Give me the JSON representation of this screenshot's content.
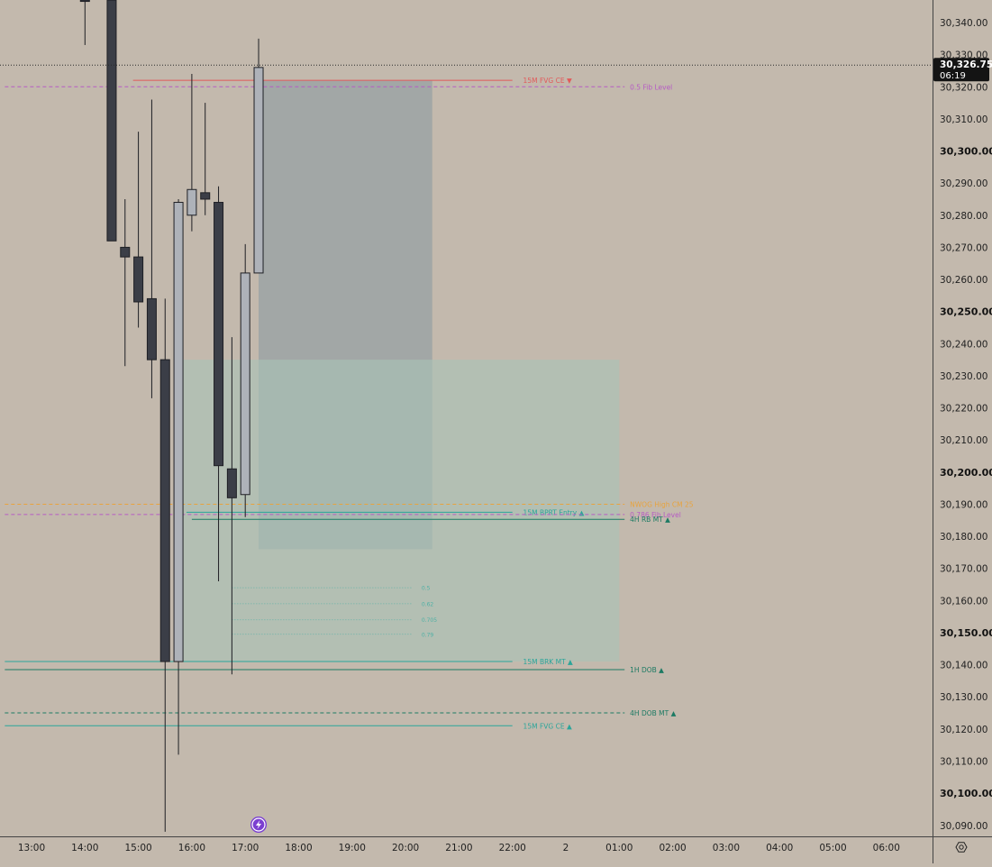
{
  "chart_data": {
    "type": "candlestick",
    "yaxis": {
      "ticks": [
        {
          "v": 30340,
          "label": "30,340.00"
        },
        {
          "v": 30330,
          "label": "30,330.00"
        },
        {
          "v": 30320,
          "label": "30,320.00"
        },
        {
          "v": 30310,
          "label": "30,310.00"
        },
        {
          "v": 30300,
          "label": "30,300.00",
          "bold": true
        },
        {
          "v": 30290,
          "label": "30,290.00"
        },
        {
          "v": 30280,
          "label": "30,280.00"
        },
        {
          "v": 30270,
          "label": "30,270.00"
        },
        {
          "v": 30260,
          "label": "30,260.00"
        },
        {
          "v": 30250,
          "label": "30,250.00",
          "bold": true
        },
        {
          "v": 30240,
          "label": "30,240.00"
        },
        {
          "v": 30230,
          "label": "30,230.00"
        },
        {
          "v": 30220,
          "label": "30,220.00"
        },
        {
          "v": 30210,
          "label": "30,210.00"
        },
        {
          "v": 30200,
          "label": "30,200.00",
          "bold": true
        },
        {
          "v": 30190,
          "label": "30,190.00"
        },
        {
          "v": 30180,
          "label": "30,180.00"
        },
        {
          "v": 30170,
          "label": "30,170.00"
        },
        {
          "v": 30160,
          "label": "30,160.00"
        },
        {
          "v": 30150,
          "label": "30,150.00",
          "bold": true
        },
        {
          "v": 30140,
          "label": "30,140.00"
        },
        {
          "v": 30130,
          "label": "30,130.00"
        },
        {
          "v": 30120,
          "label": "30,120.00"
        },
        {
          "v": 30110,
          "label": "30,110.00"
        },
        {
          "v": 30100,
          "label": "30,100.00",
          "bold": true
        },
        {
          "v": 30090,
          "label": "30,090.00"
        }
      ],
      "ylim": [
        30087,
        30347
      ]
    },
    "xaxis": {
      "ticks": [
        "13:00",
        "14:00",
        "15:00",
        "16:00",
        "17:00",
        "18:00",
        "19:00",
        "20:00",
        "21:00",
        "22:00",
        "2",
        "01:00",
        "02:00",
        "03:00",
        "04:00",
        "05:00",
        "06:00"
      ],
      "hour_span": [
        12.5,
        30.5
      ]
    },
    "candles": [
      {
        "t": 14.0,
        "o": 30347,
        "h": 30347,
        "l": 30333,
        "c": 30347,
        "dir": "down"
      },
      {
        "t": 14.5,
        "o": 30347,
        "h": 30347,
        "l": 30272,
        "c": 30272,
        "dir": "down"
      },
      {
        "t": 14.75,
        "o": 30270,
        "h": 30285,
        "l": 30233,
        "c": 30267,
        "dir": "down"
      },
      {
        "t": 15.0,
        "o": 30267,
        "h": 30306,
        "l": 30245,
        "c": 30253,
        "dir": "down"
      },
      {
        "t": 15.25,
        "o": 30254,
        "h": 30316,
        "l": 30223,
        "c": 30235,
        "dir": "down"
      },
      {
        "t": 15.5,
        "o": 30235,
        "h": 30254,
        "l": 30088,
        "c": 30141,
        "dir": "down"
      },
      {
        "t": 15.75,
        "o": 30141,
        "h": 30285,
        "l": 30112,
        "c": 30284,
        "dir": "up"
      },
      {
        "t": 16.0,
        "o": 30280,
        "h": 30324,
        "l": 30275,
        "c": 30288,
        "dir": "up"
      },
      {
        "t": 16.25,
        "o": 30287,
        "h": 30315,
        "l": 30280,
        "c": 30285,
        "dir": "down"
      },
      {
        "t": 16.5,
        "o": 30284,
        "h": 30289,
        "l": 30166,
        "c": 30202,
        "dir": "down"
      },
      {
        "t": 16.75,
        "o": 30201,
        "h": 30242,
        "l": 30137,
        "c": 30192,
        "dir": "down"
      },
      {
        "t": 17.0,
        "o": 30193,
        "h": 30271,
        "l": 30186,
        "c": 30262,
        "dir": "up"
      },
      {
        "t": 17.25,
        "o": 30262,
        "h": 30335,
        "l": 30262,
        "c": 30326,
        "dir": "up"
      }
    ],
    "zones": [
      {
        "name": "short-zone",
        "t0": 17.25,
        "t1": 20.5,
        "y0": 30176,
        "y1": 30322,
        "color": "#8c9ba2",
        "opacity": 0.6
      },
      {
        "name": "long-zone",
        "t0": 15.75,
        "t1": 24.0,
        "y0": 30141,
        "y1": 30235,
        "color": "#a9c3b7",
        "opacity": 0.6
      }
    ],
    "levels": [
      {
        "name": "fvg-ce-15m-top",
        "t0": 14.9,
        "t1": 22.0,
        "y": 30322,
        "color": "#e25a5a",
        "dash": false,
        "label": "15M FVG CE ▼",
        "lx": 22.2
      },
      {
        "name": "fib-05",
        "t0": 12.5,
        "t1": 24.1,
        "y": 30320,
        "color": "#b65cc4",
        "dash": true,
        "label": "0.5 Fib Level",
        "lx": 24.2
      },
      {
        "name": "nwog-high",
        "t0": 12.5,
        "t1": 24.1,
        "y": 30190,
        "color": "#e8a33d",
        "dash": true,
        "label": "NWOG High CM 25",
        "lx": 24.2
      },
      {
        "name": "15m-bprt-entry",
        "t0": 15.9,
        "t1": 22.0,
        "y": 30187.5,
        "color": "#2ba59a",
        "dash": false,
        "label": "15M BPRT Entry ▲",
        "lx": 22.2
      },
      {
        "name": "fib-0786",
        "t0": 12.5,
        "t1": 24.1,
        "y": 30186.8,
        "color": "#b65cc4",
        "dash": true,
        "label": "0.786 Fib Level",
        "lx": 24.2
      },
      {
        "name": "4h-rb-mt",
        "t0": 16.0,
        "t1": 24.1,
        "y": 30185.3,
        "color": "#1c7a63",
        "dash": false,
        "label": "4H RB MT ▲",
        "lx": 24.2
      },
      {
        "name": "15m-brk-mt",
        "t0": 12.5,
        "t1": 22.0,
        "y": 30141,
        "color": "#2ba59a",
        "dash": false,
        "label": "15M BRK MT ▲",
        "lx": 22.2
      },
      {
        "name": "1h-dob",
        "t0": 12.5,
        "t1": 24.1,
        "y": 30138.5,
        "color": "#1c7a63",
        "dash": false,
        "label": "1H DOB ▲",
        "lx": 24.2
      },
      {
        "name": "4h-dob-mt",
        "t0": 12.5,
        "t1": 24.1,
        "y": 30125,
        "color": "#1c7a63",
        "dash": true,
        "label": "4H DOB MT ▲",
        "lx": 24.2
      },
      {
        "name": "15m-fvg-ce-bottom",
        "t0": 12.5,
        "t1": 22.0,
        "y": 30121,
        "color": "#2ba59a",
        "dash": false,
        "label": "15M FVG CE ▲",
        "lx": 22.2
      }
    ],
    "fib_levels": [
      {
        "label": "0.5",
        "y": 30164
      },
      {
        "label": "0.62",
        "y": 30159
      },
      {
        "label": "0.705",
        "y": 30154
      },
      {
        "label": "0.79",
        "y": 30149.5
      }
    ],
    "fib_span": [
      16.75,
      20.3
    ],
    "current_price": {
      "price": 30326.75,
      "label": "30,326.75",
      "timer": "06:19"
    }
  },
  "icons": {
    "flash": "flash-icon",
    "settings": "settings-icon"
  },
  "colors": {
    "background": "#c3b9ad",
    "candle_down": "#3b3e47",
    "candle_up": "#aeb2b9",
    "axis_border": "#444444"
  }
}
